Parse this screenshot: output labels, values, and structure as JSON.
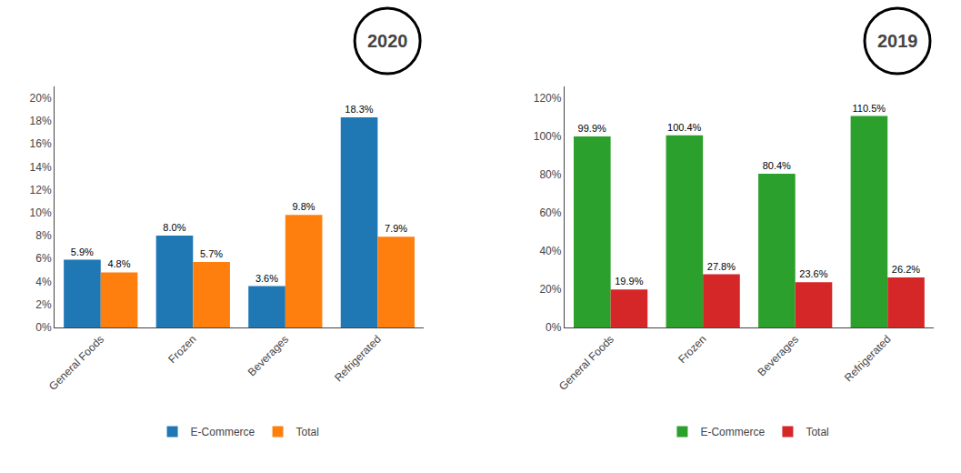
{
  "chart_data": [
    {
      "type": "bar",
      "title": "2020",
      "categories": [
        "General Foods",
        "Frozen",
        "Beverages",
        "Refrigerated"
      ],
      "series": [
        {
          "name": "E-Commerce",
          "values": [
            5.9,
            8.0,
            3.6,
            18.3
          ],
          "value_labels": [
            "5.9%",
            "8.0%",
            "3.6%",
            "18.3%"
          ]
        },
        {
          "name": "Total",
          "values": [
            4.8,
            5.7,
            9.8,
            7.9
          ],
          "value_labels": [
            "4.8%",
            "5.7%",
            "9.8%",
            "7.9%"
          ]
        }
      ],
      "ylim": [
        0,
        21
      ],
      "yticks": [
        {
          "value": 0,
          "label": "0%"
        },
        {
          "value": 2,
          "label": "2%"
        },
        {
          "value": 4,
          "label": "4%"
        },
        {
          "value": 6,
          "label": "6%"
        },
        {
          "value": 8,
          "label": "8%"
        },
        {
          "value": 10,
          "label": "10%"
        },
        {
          "value": 12,
          "label": "12%"
        },
        {
          "value": 14,
          "label": "14%"
        },
        {
          "value": 16,
          "label": "16%"
        },
        {
          "value": 18,
          "label": "18%"
        },
        {
          "value": 20,
          "label": "20%"
        }
      ],
      "grid": false,
      "data_labels": true,
      "legend": "bottom"
    },
    {
      "type": "bar",
      "title": "2019",
      "categories": [
        "General Foods",
        "Frozen",
        "Beverages",
        "Refrigerated"
      ],
      "series": [
        {
          "name": "E-Commerce",
          "values": [
            99.9,
            100.4,
            80.4,
            110.5
          ],
          "value_labels": [
            "99.9%",
            "100.4%",
            "80.4%",
            "110.5%"
          ]
        },
        {
          "name": "Total",
          "values": [
            19.9,
            27.8,
            23.6,
            26.2
          ],
          "value_labels": [
            "19.9%",
            "27.8%",
            "23.6%",
            "26.2%"
          ]
        }
      ],
      "ylim": [
        0,
        126
      ],
      "yticks": [
        {
          "value": 0,
          "label": "0%"
        },
        {
          "value": 20,
          "label": "20%"
        },
        {
          "value": 40,
          "label": "40%"
        },
        {
          "value": 60,
          "label": "60%"
        },
        {
          "value": 80,
          "label": "80%"
        },
        {
          "value": 100,
          "label": "100%"
        },
        {
          "value": 120,
          "label": "120%"
        }
      ],
      "grid": false,
      "data_labels": true,
      "legend": "bottom"
    }
  ]
}
